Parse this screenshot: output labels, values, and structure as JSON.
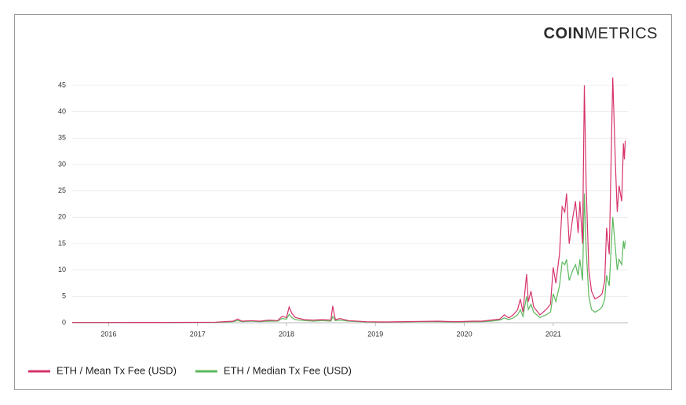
{
  "logo": {
    "bold": "COIN",
    "light": "METRICS"
  },
  "chart_data": {
    "type": "line",
    "x": [
      2015.59,
      2015.8,
      2016.0,
      2016.3,
      2016.6,
      2016.9,
      2017.2,
      2017.4,
      2017.45,
      2017.5,
      2017.6,
      2017.7,
      2017.8,
      2017.9,
      2017.95,
      2018.0,
      2018.03,
      2018.06,
      2018.1,
      2018.2,
      2018.3,
      2018.4,
      2018.5,
      2018.52,
      2018.55,
      2018.6,
      2018.7,
      2018.9,
      2019.1,
      2019.3,
      2019.5,
      2019.7,
      2019.9,
      2020.1,
      2020.2,
      2020.3,
      2020.4,
      2020.45,
      2020.5,
      2020.55,
      2020.6,
      2020.63,
      2020.66,
      2020.7,
      2020.72,
      2020.75,
      2020.78,
      2020.85,
      2020.92,
      2020.97,
      2021.0,
      2021.03,
      2021.07,
      2021.1,
      2021.13,
      2021.15,
      2021.18,
      2021.22,
      2021.25,
      2021.28,
      2021.3,
      2021.33,
      2021.35,
      2021.37,
      2021.4,
      2021.43,
      2021.47,
      2021.52,
      2021.55,
      2021.58,
      2021.6,
      2021.63,
      2021.67,
      2021.7,
      2021.72,
      2021.74,
      2021.77,
      2021.79,
      2021.8,
      2021.81
    ],
    "series": [
      {
        "name": "ETH / Mean Tx Fee (USD)",
        "color": "#d6336c",
        "values": [
          0.05,
          0.05,
          0.05,
          0.06,
          0.06,
          0.07,
          0.1,
          0.3,
          0.7,
          0.3,
          0.4,
          0.3,
          0.5,
          0.4,
          1.2,
          1.0,
          3.0,
          1.8,
          1.0,
          0.6,
          0.5,
          0.6,
          0.5,
          3.2,
          0.6,
          0.8,
          0.4,
          0.2,
          0.15,
          0.2,
          0.25,
          0.3,
          0.2,
          0.3,
          0.3,
          0.5,
          0.7,
          1.5,
          0.9,
          1.5,
          2.5,
          4.5,
          2.0,
          9.2,
          4.0,
          6.0,
          3.0,
          1.5,
          2.5,
          3.5,
          10.5,
          7.5,
          13,
          22,
          21,
          24.5,
          15,
          20,
          23,
          17,
          23,
          15,
          45,
          26,
          10,
          6,
          4.5,
          5,
          5.5,
          8,
          18,
          13,
          46.5,
          30,
          21,
          26,
          23,
          34,
          31,
          34.5
        ]
      },
      {
        "name": "ETH / Median Tx Fee (USD)",
        "color": "#5cb85c",
        "values": [
          0.04,
          0.04,
          0.04,
          0.05,
          0.05,
          0.06,
          0.08,
          0.2,
          0.4,
          0.2,
          0.3,
          0.2,
          0.3,
          0.3,
          0.8,
          0.7,
          1.6,
          1.0,
          0.6,
          0.4,
          0.3,
          0.4,
          0.3,
          1.2,
          0.4,
          0.5,
          0.3,
          0.15,
          0.1,
          0.15,
          0.2,
          0.2,
          0.15,
          0.2,
          0.2,
          0.3,
          0.5,
          0.9,
          0.6,
          0.9,
          1.5,
          2.5,
          1.2,
          5.0,
          2.5,
          3.5,
          2.0,
          1.0,
          1.5,
          2.0,
          5.5,
          4.0,
          7.0,
          11.5,
          11,
          12,
          8,
          10,
          11,
          9,
          12,
          8,
          24.5,
          14,
          5,
          2.5,
          2,
          2.5,
          3,
          4.5,
          9,
          7,
          20,
          14,
          10,
          12,
          11,
          15.5,
          14,
          15.5
        ]
      }
    ],
    "xlim": [
      2015.59,
      2021.84
    ],
    "xticks": [
      2016,
      2017,
      2018,
      2019,
      2020,
      2021
    ],
    "ylim": [
      0,
      45
    ],
    "yticks": [
      0,
      5,
      10,
      15,
      20,
      25,
      30,
      35,
      40,
      45
    ],
    "grid": true,
    "legend": "bottom-left"
  }
}
